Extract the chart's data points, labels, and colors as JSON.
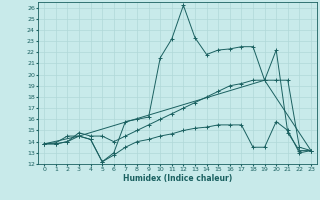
{
  "title": "",
  "xlabel": "Humidex (Indice chaleur)",
  "ylabel": "",
  "xlim": [
    -0.5,
    23.5
  ],
  "ylim": [
    12,
    26.5
  ],
  "bg_color": "#c8eaea",
  "line_color": "#1a6060",
  "grid_color": "#b0d8d8",
  "lines": [
    {
      "x": [
        0,
        1,
        2,
        3,
        4,
        5,
        6,
        7,
        8,
        9,
        10,
        11,
        12,
        13,
        14,
        15,
        16,
        17,
        18,
        19,
        20,
        21,
        22,
        23
      ],
      "y": [
        13.8,
        13.9,
        14.5,
        14.5,
        14.2,
        12.2,
        13.0,
        15.8,
        16.0,
        16.2,
        21.5,
        23.2,
        26.2,
        23.3,
        21.8,
        22.2,
        22.3,
        22.5,
        22.5,
        19.5,
        22.2,
        14.8,
        13.2,
        13.2
      ],
      "marker": "+"
    },
    {
      "x": [
        0,
        1,
        2,
        3,
        4,
        5,
        6,
        7,
        8,
        9,
        10,
        11,
        12,
        13,
        14,
        15,
        16,
        17,
        18,
        19,
        20,
        21,
        22,
        23
      ],
      "y": [
        13.8,
        13.8,
        14.0,
        14.8,
        14.5,
        14.5,
        14.0,
        14.5,
        15.0,
        15.5,
        16.0,
        16.5,
        17.0,
        17.5,
        18.0,
        18.5,
        19.0,
        19.2,
        19.5,
        19.5,
        19.5,
        19.5,
        13.5,
        13.2
      ],
      "marker": "+"
    },
    {
      "x": [
        0,
        1,
        2,
        3,
        4,
        5,
        6,
        7,
        8,
        9,
        10,
        11,
        12,
        13,
        14,
        15,
        16,
        17,
        18,
        19,
        20,
        21,
        22,
        23
      ],
      "y": [
        13.8,
        13.8,
        14.0,
        14.5,
        14.2,
        12.2,
        12.8,
        13.5,
        14.0,
        14.2,
        14.5,
        14.7,
        15.0,
        15.2,
        15.3,
        15.5,
        15.5,
        15.5,
        13.5,
        13.5,
        15.8,
        15.0,
        13.0,
        13.2
      ],
      "marker": "+"
    },
    {
      "x": [
        0,
        3,
        19,
        23
      ],
      "y": [
        13.8,
        14.5,
        19.5,
        13.2
      ],
      "marker": null
    }
  ],
  "xticks": [
    0,
    1,
    2,
    3,
    4,
    5,
    6,
    7,
    8,
    9,
    10,
    11,
    12,
    13,
    14,
    15,
    16,
    17,
    18,
    19,
    20,
    21,
    22,
    23
  ],
  "yticks": [
    12,
    13,
    14,
    15,
    16,
    17,
    18,
    19,
    20,
    21,
    22,
    23,
    24,
    25,
    26
  ]
}
